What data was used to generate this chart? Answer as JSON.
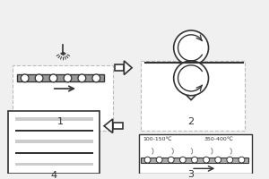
{
  "bg_color": "#f5f5f5",
  "line_color": "#333333",
  "box_color": "#ffffff",
  "arrow_color": "#555555",
  "fig_bg": "#f0f0f0",
  "step1_label": "1",
  "step2_label": "2",
  "step3_label": "3",
  "step4_label": "4",
  "temp_label1": "100-150℃",
  "temp_label2": "350-400℃"
}
